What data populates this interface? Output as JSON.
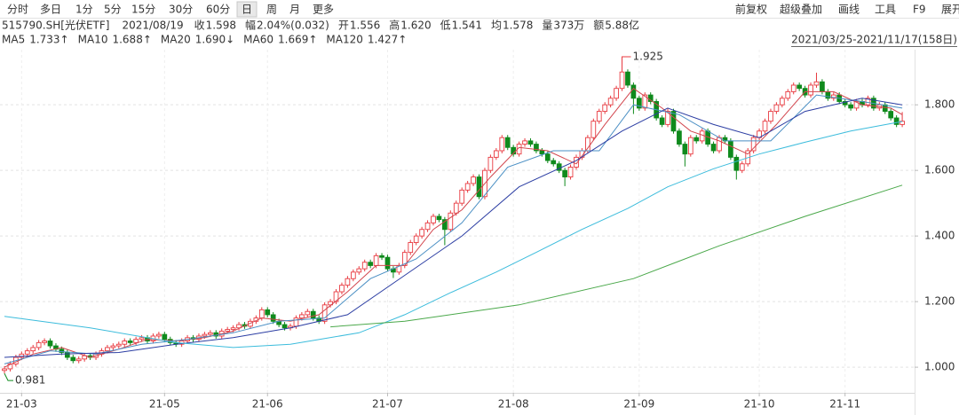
{
  "toolbar": {
    "left": [
      "分时",
      "多日",
      "1分",
      "5分",
      "15分",
      "30分",
      "60分",
      "日",
      "周",
      "月",
      "更多"
    ],
    "selected": 7,
    "right": [
      "前复权",
      "超级叠加",
      "画线",
      "工具",
      "F9",
      "展开"
    ]
  },
  "quote": {
    "symbol": "515790.SH[光伏ETF]",
    "date": "2021/08/19",
    "fields": [
      {
        "label": "收",
        "value": "1.598",
        "color": "#e0393e"
      },
      {
        "label": "幅",
        "value": "2.04%(0.032)",
        "color": "#e0393e"
      },
      {
        "label": "开",
        "value": "1.556",
        "color": "#0f8a1c"
      },
      {
        "label": "高",
        "value": "1.620",
        "color": "#e0393e"
      },
      {
        "label": "低",
        "value": "1.541",
        "color": "#0f8a1c"
      },
      {
        "label": "均",
        "value": "1.578",
        "color": "#0f8a1c"
      },
      {
        "label": "量",
        "value": "373万",
        "color": "#333333"
      },
      {
        "label": "额",
        "value": "5.88亿",
        "color": "#333333"
      }
    ]
  },
  "chart_data": {
    "type": "candlestick",
    "range": "2021/03/25-2021/11/17(158日)",
    "up_color": "#e8393f",
    "down_color": "#0f8a1c",
    "grid": true,
    "ylim": [
      0.93,
      1.96
    ],
    "yticks": [
      {
        "value": 1,
        "label": "1.000"
      },
      {
        "value": 1.2,
        "label": "1.200"
      },
      {
        "value": 1.4,
        "label": "1.400"
      },
      {
        "value": 1.6,
        "label": "1.600"
      },
      {
        "value": 1.8,
        "label": "1.800"
      }
    ],
    "xticks": [
      {
        "value": 3,
        "label": "21-03"
      },
      {
        "value": 28,
        "label": "21-05"
      },
      {
        "value": 46,
        "label": "21-06"
      },
      {
        "value": 67,
        "label": "21-07"
      },
      {
        "value": 89,
        "label": "21-08"
      },
      {
        "value": 111,
        "label": "21-09"
      },
      {
        "value": 132,
        "label": "21-10"
      },
      {
        "value": 147,
        "label": "21-11"
      }
    ],
    "annotations": [
      {
        "x": 108,
        "value": 1.925
      },
      {
        "x": 0,
        "value": 0.981
      }
    ],
    "candles": [
      [
        0.99,
        1.003,
        0.981,
        0.995
      ],
      [
        0.995,
        1.018,
        0.987,
        1.01
      ],
      [
        1.01,
        1.038,
        1.002,
        1.03
      ],
      [
        1.03,
        1.048,
        1.022,
        1.04
      ],
      [
        1.04,
        1.058,
        1.032,
        1.05
      ],
      [
        1.05,
        1.068,
        1.042,
        1.06
      ],
      [
        1.06,
        1.083,
        1.052,
        1.075
      ],
      [
        1.075,
        1.088,
        1.067,
        1.08
      ],
      [
        1.08,
        1.088,
        1.057,
        1.065
      ],
      [
        1.065,
        1.073,
        1.047,
        1.055
      ],
      [
        1.055,
        1.063,
        1.037,
        1.045
      ],
      [
        1.045,
        1.053,
        1.022,
        1.03
      ],
      [
        1.03,
        1.038,
        1.012,
        1.02
      ],
      [
        1.02,
        1.033,
        1.012,
        1.025
      ],
      [
        1.025,
        1.043,
        1.017,
        1.035
      ],
      [
        1.035,
        1.043,
        1.022,
        1.03
      ],
      [
        1.03,
        1.048,
        1.022,
        1.04
      ],
      [
        1.04,
        1.058,
        1.032,
        1.05
      ],
      [
        1.05,
        1.068,
        1.042,
        1.06
      ],
      [
        1.06,
        1.073,
        1.052,
        1.065
      ],
      [
        1.065,
        1.078,
        1.057,
        1.07
      ],
      [
        1.07,
        1.088,
        1.062,
        1.08
      ],
      [
        1.08,
        1.088,
        1.067,
        1.075
      ],
      [
        1.075,
        1.093,
        1.067,
        1.085
      ],
      [
        1.085,
        1.098,
        1.077,
        1.09
      ],
      [
        1.09,
        1.098,
        1.072,
        1.08
      ],
      [
        1.08,
        1.103,
        1.072,
        1.095
      ],
      [
        1.095,
        1.108,
        1.087,
        1.1
      ],
      [
        1.1,
        1.108,
        1.077,
        1.085
      ],
      [
        1.085,
        1.093,
        1.067,
        1.075
      ],
      [
        1.075,
        1.083,
        1.062,
        1.07
      ],
      [
        1.07,
        1.088,
        1.062,
        1.08
      ],
      [
        1.08,
        1.098,
        1.072,
        1.09
      ],
      [
        1.09,
        1.098,
        1.077,
        1.085
      ],
      [
        1.085,
        1.103,
        1.077,
        1.095
      ],
      [
        1.095,
        1.108,
        1.087,
        1.1
      ],
      [
        1.1,
        1.113,
        1.092,
        1.105
      ],
      [
        1.105,
        1.113,
        1.087,
        1.095
      ],
      [
        1.095,
        1.118,
        1.087,
        1.11
      ],
      [
        1.11,
        1.123,
        1.102,
        1.115
      ],
      [
        1.115,
        1.128,
        1.107,
        1.12
      ],
      [
        1.12,
        1.138,
        1.112,
        1.13
      ],
      [
        1.13,
        1.138,
        1.117,
        1.125
      ],
      [
        1.125,
        1.148,
        1.117,
        1.14
      ],
      [
        1.14,
        1.158,
        1.132,
        1.15
      ],
      [
        1.15,
        1.183,
        1.142,
        1.175
      ],
      [
        1.175,
        1.183,
        1.152,
        1.16
      ],
      [
        1.16,
        1.168,
        1.132,
        1.14
      ],
      [
        1.14,
        1.148,
        1.122,
        1.13
      ],
      [
        1.13,
        1.138,
        1.112,
        1.12
      ],
      [
        1.12,
        1.133,
        1.112,
        1.125
      ],
      [
        1.125,
        1.158,
        1.117,
        1.15
      ],
      [
        1.15,
        1.168,
        1.142,
        1.16
      ],
      [
        1.16,
        1.178,
        1.152,
        1.17
      ],
      [
        1.17,
        1.178,
        1.142,
        1.15
      ],
      [
        1.15,
        1.158,
        1.132,
        1.14
      ],
      [
        1.14,
        1.198,
        1.132,
        1.19
      ],
      [
        1.19,
        1.208,
        1.182,
        1.2
      ],
      [
        1.2,
        1.238,
        1.192,
        1.23
      ],
      [
        1.23,
        1.258,
        1.222,
        1.25
      ],
      [
        1.25,
        1.278,
        1.242,
        1.27
      ],
      [
        1.27,
        1.298,
        1.262,
        1.29
      ],
      [
        1.29,
        1.308,
        1.282,
        1.3
      ],
      [
        1.3,
        1.328,
        1.292,
        1.32
      ],
      [
        1.32,
        1.328,
        1.302,
        1.31
      ],
      [
        1.31,
        1.348,
        1.302,
        1.34
      ],
      [
        1.34,
        1.348,
        1.327,
        1.335
      ],
      [
        1.335,
        1.343,
        1.292,
        1.3
      ],
      [
        1.3,
        1.308,
        1.272,
        1.29
      ],
      [
        1.29,
        1.318,
        1.282,
        1.31
      ],
      [
        1.31,
        1.358,
        1.302,
        1.35
      ],
      [
        1.35,
        1.388,
        1.342,
        1.38
      ],
      [
        1.38,
        1.408,
        1.372,
        1.4
      ],
      [
        1.4,
        1.428,
        1.392,
        1.42
      ],
      [
        1.42,
        1.448,
        1.412,
        1.44
      ],
      [
        1.44,
        1.468,
        1.432,
        1.46
      ],
      [
        1.46,
        1.468,
        1.442,
        1.45
      ],
      [
        1.45,
        1.458,
        1.372,
        1.42
      ],
      [
        1.42,
        1.478,
        1.412,
        1.47
      ],
      [
        1.47,
        1.508,
        1.462,
        1.5
      ],
      [
        1.5,
        1.548,
        1.492,
        1.54
      ],
      [
        1.54,
        1.568,
        1.532,
        1.56
      ],
      [
        1.56,
        1.588,
        1.552,
        1.58
      ],
      [
        1.58,
        1.588,
        1.512,
        1.52
      ],
      [
        1.52,
        1.608,
        1.512,
        1.6
      ],
      [
        1.6,
        1.648,
        1.592,
        1.64
      ],
      [
        1.64,
        1.668,
        1.632,
        1.66
      ],
      [
        1.66,
        1.708,
        1.652,
        1.7
      ],
      [
        1.7,
        1.708,
        1.662,
        1.67
      ],
      [
        1.67,
        1.678,
        1.642,
        1.65
      ],
      [
        1.65,
        1.688,
        1.642,
        1.68
      ],
      [
        1.68,
        1.698,
        1.672,
        1.69
      ],
      [
        1.69,
        1.698,
        1.672,
        1.68
      ],
      [
        1.68,
        1.688,
        1.652,
        1.66
      ],
      [
        1.66,
        1.668,
        1.642,
        1.65
      ],
      [
        1.65,
        1.658,
        1.622,
        1.63
      ],
      [
        1.63,
        1.638,
        1.612,
        1.62
      ],
      [
        1.62,
        1.628,
        1.592,
        1.6
      ],
      [
        1.6,
        1.608,
        1.552,
        1.58
      ],
      [
        1.58,
        1.618,
        1.572,
        1.61
      ],
      [
        1.61,
        1.648,
        1.602,
        1.64
      ],
      [
        1.64,
        1.668,
        1.632,
        1.66
      ],
      [
        1.66,
        1.708,
        1.652,
        1.7
      ],
      [
        1.7,
        1.758,
        1.692,
        1.75
      ],
      [
        1.75,
        1.788,
        1.742,
        1.78
      ],
      [
        1.78,
        1.808,
        1.772,
        1.8
      ],
      [
        1.8,
        1.828,
        1.792,
        1.82
      ],
      [
        1.82,
        1.858,
        1.812,
        1.85
      ],
      [
        1.85,
        1.925,
        1.842,
        1.9
      ],
      [
        1.9,
        1.908,
        1.852,
        1.86
      ],
      [
        1.86,
        1.868,
        1.772,
        1.82
      ],
      [
        1.82,
        1.828,
        1.782,
        1.79
      ],
      [
        1.79,
        1.838,
        1.782,
        1.83
      ],
      [
        1.83,
        1.838,
        1.802,
        1.81
      ],
      [
        1.81,
        1.818,
        1.752,
        1.76
      ],
      [
        1.76,
        1.768,
        1.732,
        1.74
      ],
      [
        1.74,
        1.788,
        1.732,
        1.78
      ],
      [
        1.78,
        1.788,
        1.712,
        1.72
      ],
      [
        1.72,
        1.728,
        1.672,
        1.68
      ],
      [
        1.68,
        1.688,
        1.612,
        1.65
      ],
      [
        1.65,
        1.708,
        1.642,
        1.7
      ],
      [
        1.7,
        1.708,
        1.682,
        1.69
      ],
      [
        1.69,
        1.728,
        1.682,
        1.72
      ],
      [
        1.72,
        1.728,
        1.672,
        1.68
      ],
      [
        1.68,
        1.688,
        1.652,
        1.66
      ],
      [
        1.66,
        1.708,
        1.652,
        1.7
      ],
      [
        1.7,
        1.708,
        1.682,
        1.69
      ],
      [
        1.69,
        1.698,
        1.632,
        1.64
      ],
      [
        1.64,
        1.648,
        1.572,
        1.6
      ],
      [
        1.6,
        1.628,
        1.592,
        1.62
      ],
      [
        1.62,
        1.668,
        1.612,
        1.66
      ],
      [
        1.66,
        1.708,
        1.652,
        1.7
      ],
      [
        1.7,
        1.728,
        1.692,
        1.72
      ],
      [
        1.72,
        1.758,
        1.712,
        1.75
      ],
      [
        1.75,
        1.788,
        1.742,
        1.78
      ],
      [
        1.78,
        1.808,
        1.772,
        1.8
      ],
      [
        1.8,
        1.828,
        1.792,
        1.82
      ],
      [
        1.82,
        1.848,
        1.812,
        1.84
      ],
      [
        1.84,
        1.868,
        1.832,
        1.86
      ],
      [
        1.86,
        1.868,
        1.842,
        1.85
      ],
      [
        1.85,
        1.858,
        1.822,
        1.83
      ],
      [
        1.83,
        1.868,
        1.822,
        1.86
      ],
      [
        1.86,
        1.898,
        1.852,
        1.87
      ],
      [
        1.87,
        1.878,
        1.832,
        1.84
      ],
      [
        1.84,
        1.848,
        1.812,
        1.82
      ],
      [
        1.82,
        1.838,
        1.812,
        1.83
      ],
      [
        1.83,
        1.838,
        1.802,
        1.81
      ],
      [
        1.81,
        1.818,
        1.792,
        1.8
      ],
      [
        1.8,
        1.808,
        1.782,
        1.79
      ],
      [
        1.79,
        1.818,
        1.782,
        1.81
      ],
      [
        1.81,
        1.818,
        1.792,
        1.8
      ],
      [
        1.8,
        1.828,
        1.792,
        1.82
      ],
      [
        1.82,
        1.828,
        1.782,
        1.79
      ],
      [
        1.79,
        1.808,
        1.782,
        1.8
      ],
      [
        1.8,
        1.808,
        1.772,
        1.78
      ],
      [
        1.78,
        1.788,
        1.752,
        1.76
      ],
      [
        1.76,
        1.768,
        1.732,
        1.74
      ],
      [
        1.74,
        1.778,
        1.732,
        1.75
      ]
    ],
    "series": [
      {
        "name": "MA5",
        "last": "1.733↑",
        "color": "#d2454d",
        "x": [
          0,
          5,
          10,
          15,
          20,
          25,
          30,
          35,
          40,
          45,
          50,
          55,
          60,
          65,
          70,
          75,
          80,
          85,
          90,
          95,
          100,
          105,
          110,
          115,
          120,
          125,
          130,
          135,
          140,
          145,
          150,
          155,
          157
        ],
        "values": [
          1.0,
          1.04,
          1.06,
          1.03,
          1.055,
          1.085,
          1.08,
          1.09,
          1.11,
          1.15,
          1.14,
          1.16,
          1.23,
          1.31,
          1.31,
          1.42,
          1.48,
          1.58,
          1.67,
          1.66,
          1.62,
          1.74,
          1.85,
          1.79,
          1.72,
          1.69,
          1.65,
          1.74,
          1.84,
          1.84,
          1.8,
          1.79,
          1.77
        ]
      },
      {
        "name": "MA10",
        "last": "1.688↑",
        "color": "#4a8fc4",
        "x": [
          0,
          8,
          16,
          24,
          32,
          40,
          48,
          56,
          64,
          72,
          80,
          88,
          96,
          104,
          110,
          118,
          126,
          134,
          142,
          150,
          157
        ],
        "values": [
          1.01,
          1.05,
          1.04,
          1.07,
          1.085,
          1.105,
          1.14,
          1.15,
          1.27,
          1.33,
          1.44,
          1.61,
          1.66,
          1.66,
          1.8,
          1.77,
          1.69,
          1.69,
          1.83,
          1.81,
          1.79
        ]
      },
      {
        "name": "MA20",
        "last": "1.690↓",
        "color": "#2c3ea3",
        "x": [
          0,
          10,
          20,
          30,
          40,
          50,
          60,
          70,
          80,
          90,
          100,
          108,
          116,
          124,
          132,
          140,
          150,
          157
        ],
        "values": [
          1.03,
          1.04,
          1.045,
          1.07,
          1.09,
          1.12,
          1.16,
          1.28,
          1.4,
          1.55,
          1.63,
          1.72,
          1.79,
          1.74,
          1.7,
          1.78,
          1.82,
          1.8
        ]
      },
      {
        "name": "MA60",
        "last": "1.669↑",
        "color": "#3cbcdc",
        "x": [
          0,
          15,
          30,
          40,
          50,
          62,
          70,
          78,
          86,
          93,
          101,
          109,
          116,
          124,
          132,
          140,
          148,
          157
        ],
        "values": [
          1.155,
          1.12,
          1.075,
          1.06,
          1.07,
          1.105,
          1.16,
          1.227,
          1.29,
          1.35,
          1.42,
          1.484,
          1.55,
          1.605,
          1.65,
          1.686,
          1.72,
          1.749
        ]
      },
      {
        "name": "MA120",
        "last": "1.427↑",
        "color": "#4aa84a",
        "x": [
          57,
          70,
          90,
          110,
          125,
          140,
          157
        ],
        "values": [
          1.123,
          1.14,
          1.19,
          1.27,
          1.37,
          1.46,
          1.555
        ]
      }
    ]
  }
}
